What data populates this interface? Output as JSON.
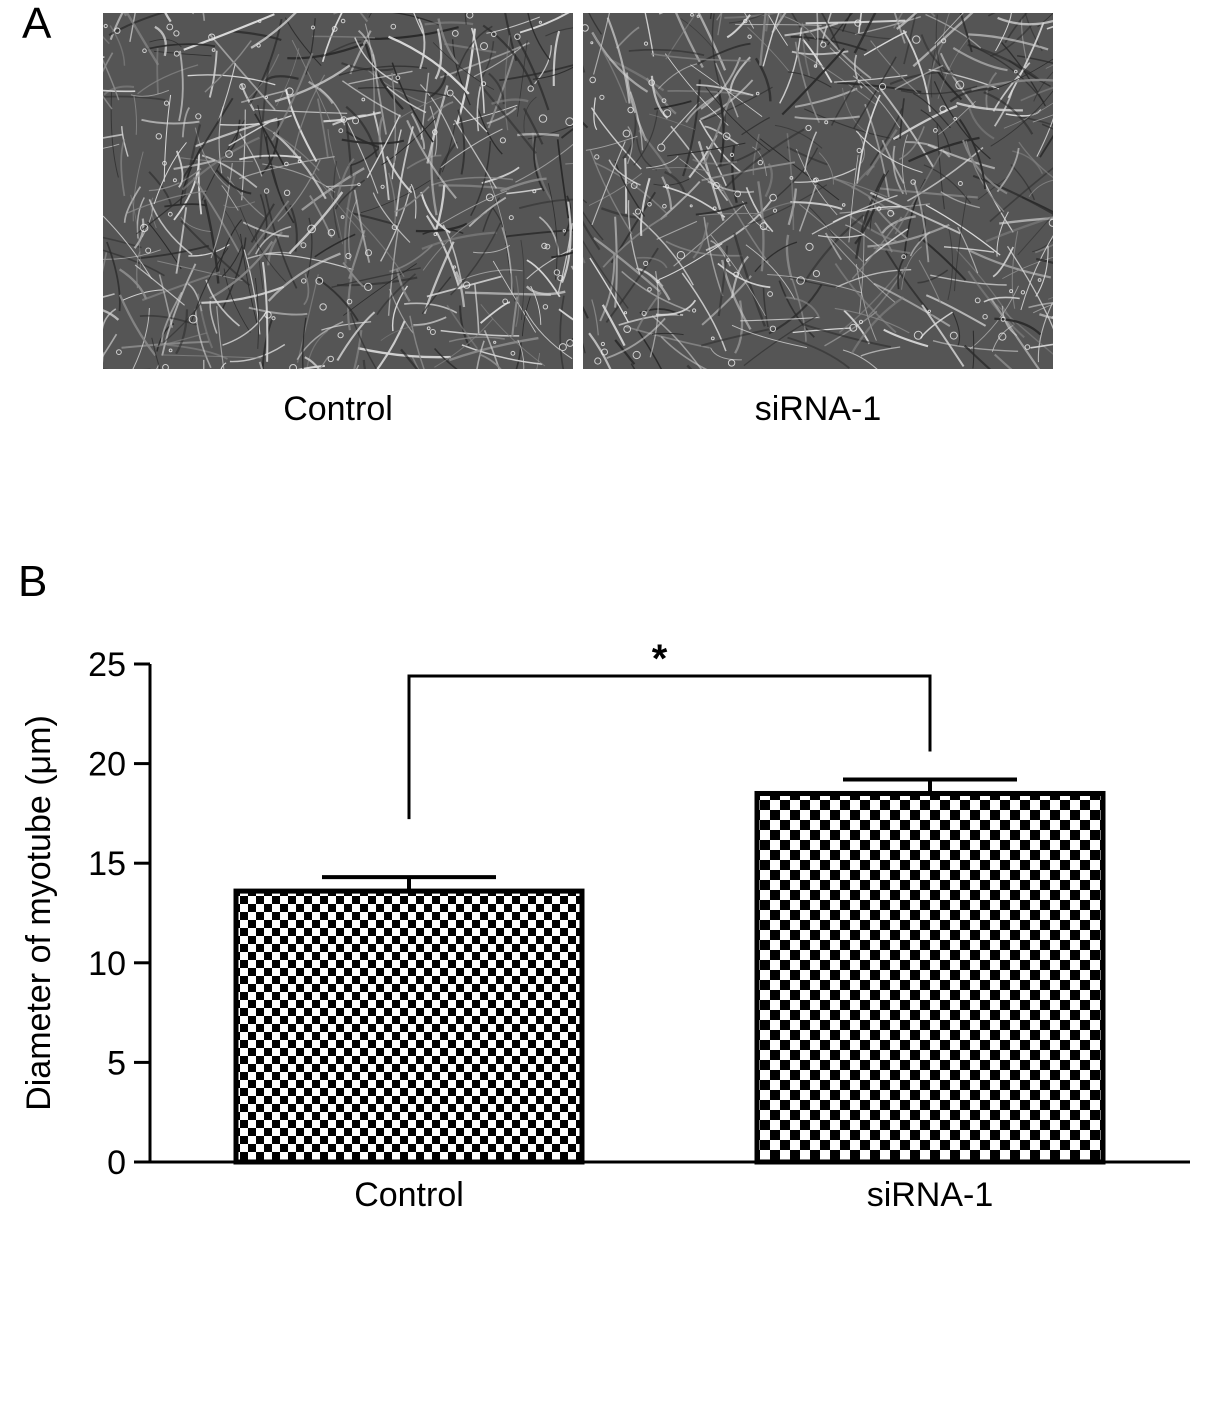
{
  "panel_a": {
    "letter": "A",
    "images": [
      {
        "caption": "Control"
      },
      {
        "caption": "siRNA-1"
      }
    ]
  },
  "panel_b": {
    "letter": "B"
  },
  "chart_data": {
    "type": "bar",
    "categories": [
      "Control",
      "siRNA-1"
    ],
    "values": [
      13.6,
      18.5
    ],
    "error": [
      0.7,
      0.7
    ],
    "ylabel": "Diameter of myotube (μm)",
    "xlabel": "",
    "ylim": [
      0,
      25
    ],
    "yticks": [
      0,
      5,
      10,
      15,
      20,
      25
    ],
    "significance": {
      "between": [
        "Control",
        "siRNA-1"
      ],
      "label": "*"
    },
    "fill": "checkerboard",
    "bar_color": "#000000"
  }
}
